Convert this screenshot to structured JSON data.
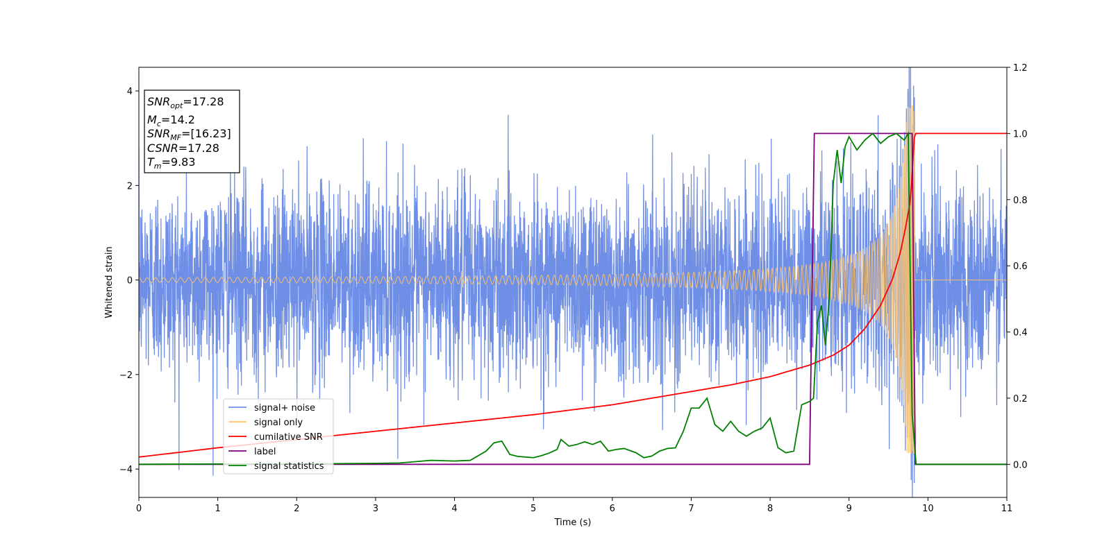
{
  "chart_data": {
    "type": "line",
    "xlabel": "Time (s)",
    "ylabel": "Whitened strain",
    "xlim": [
      0,
      11
    ],
    "ylim": [
      -4.6,
      4.5
    ],
    "y2lim": [
      -0.1,
      1.2
    ],
    "x_ticks": [
      "0",
      "1",
      "2",
      "3",
      "4",
      "5",
      "6",
      "7",
      "8",
      "9",
      "10",
      "11"
    ],
    "y_ticks": [
      "−4",
      "−2",
      "0",
      "2",
      "4"
    ],
    "y2_ticks": [
      "0.0",
      "0.2",
      "0.4",
      "0.6",
      "0.8",
      "1.0",
      "1.2"
    ],
    "legend_placement": "lower-left",
    "annotation": {
      "snr_opt_main": "SNR",
      "snr_opt_sub": "opt",
      "snr_opt_value": "=17.28",
      "mc_main": "M",
      "mc_sub": "c",
      "mc_value": "=14.2",
      "snr_mf_main": "SNR",
      "snr_mf_sub": "MF",
      "snr_mf_value": "=[16.23]",
      "csnr_main": "CSNR",
      "csnr_value": "=17.28",
      "tm_main": "T",
      "tm_sub": "m",
      "tm_value": "=9.83"
    },
    "series": [
      {
        "name": "signal+ noise",
        "color": "#6f8fe6",
        "axis": "left",
        "description_values": "whitened noise, std about 1, peaks near ±3.5",
        "noise_std": 1.0,
        "x_range": [
          0,
          11
        ]
      },
      {
        "name": "signal only",
        "color": "#ffc466",
        "axis": "left",
        "chirp": {
          "start_amplitude": 0.05,
          "peak_amplitude": 3.7,
          "merger_time": 9.83,
          "start_frequency": 17,
          "end": 9.83
        }
      },
      {
        "name": "cumilative SNR",
        "color": "#ff0000",
        "axis": "right",
        "x": [
          0,
          1,
          2,
          3,
          4,
          5,
          6,
          7,
          7.5,
          8,
          8.5,
          8.8,
          9,
          9.2,
          9.4,
          9.55,
          9.65,
          9.72,
          9.78,
          9.83,
          11
        ],
        "y": [
          0.022,
          0.05,
          0.075,
          0.1,
          0.125,
          0.15,
          0.18,
          0.22,
          0.24,
          0.265,
          0.3,
          0.33,
          0.36,
          0.41,
          0.48,
          0.56,
          0.64,
          0.72,
          0.8,
          1.0,
          1.0
        ]
      },
      {
        "name": "label",
        "color": "#800080",
        "axis": "right",
        "x": [
          0,
          8.5,
          8.56,
          9.8,
          9.84,
          11
        ],
        "y": [
          0,
          0,
          1,
          1,
          0,
          0
        ]
      },
      {
        "name": "signal statistics",
        "color": "#008000",
        "axis": "right",
        "x": [
          0,
          1,
          2,
          3,
          3.3,
          3.5,
          3.7,
          4,
          4.2,
          4.4,
          4.5,
          4.6,
          4.7,
          4.8,
          5,
          5.1,
          5.2,
          5.3,
          5.35,
          5.45,
          5.55,
          5.65,
          5.75,
          5.85,
          5.95,
          6.05,
          6.15,
          6.3,
          6.4,
          6.5,
          6.6,
          6.7,
          6.8,
          6.9,
          7.0,
          7.1,
          7.2,
          7.3,
          7.4,
          7.5,
          7.6,
          7.7,
          7.8,
          7.9,
          8.0,
          8.1,
          8.2,
          8.3,
          8.4,
          8.5,
          8.55,
          8.6,
          8.65,
          8.7,
          8.75,
          8.8,
          8.85,
          8.9,
          8.95,
          9.0,
          9.1,
          9.2,
          9.3,
          9.4,
          9.5,
          9.6,
          9.7,
          9.75,
          9.8,
          9.85,
          9.9,
          10,
          11
        ],
        "y": [
          0.0,
          0.001,
          0.001,
          0.003,
          0.004,
          0.008,
          0.012,
          0.01,
          0.012,
          0.04,
          0.065,
          0.07,
          0.03,
          0.024,
          0.02,
          0.026,
          0.034,
          0.045,
          0.075,
          0.055,
          0.06,
          0.068,
          0.06,
          0.07,
          0.04,
          0.045,
          0.048,
          0.035,
          0.02,
          0.025,
          0.04,
          0.048,
          0.05,
          0.1,
          0.17,
          0.17,
          0.2,
          0.12,
          0.1,
          0.13,
          0.1,
          0.085,
          0.1,
          0.11,
          0.14,
          0.05,
          0.035,
          0.04,
          0.18,
          0.19,
          0.2,
          0.43,
          0.48,
          0.36,
          0.5,
          0.85,
          0.95,
          0.85,
          0.96,
          0.99,
          0.95,
          0.98,
          1.0,
          0.97,
          0.99,
          1.0,
          0.98,
          1.0,
          0.15,
          0.0,
          0.0,
          0.0,
          0.0
        ]
      }
    ]
  }
}
